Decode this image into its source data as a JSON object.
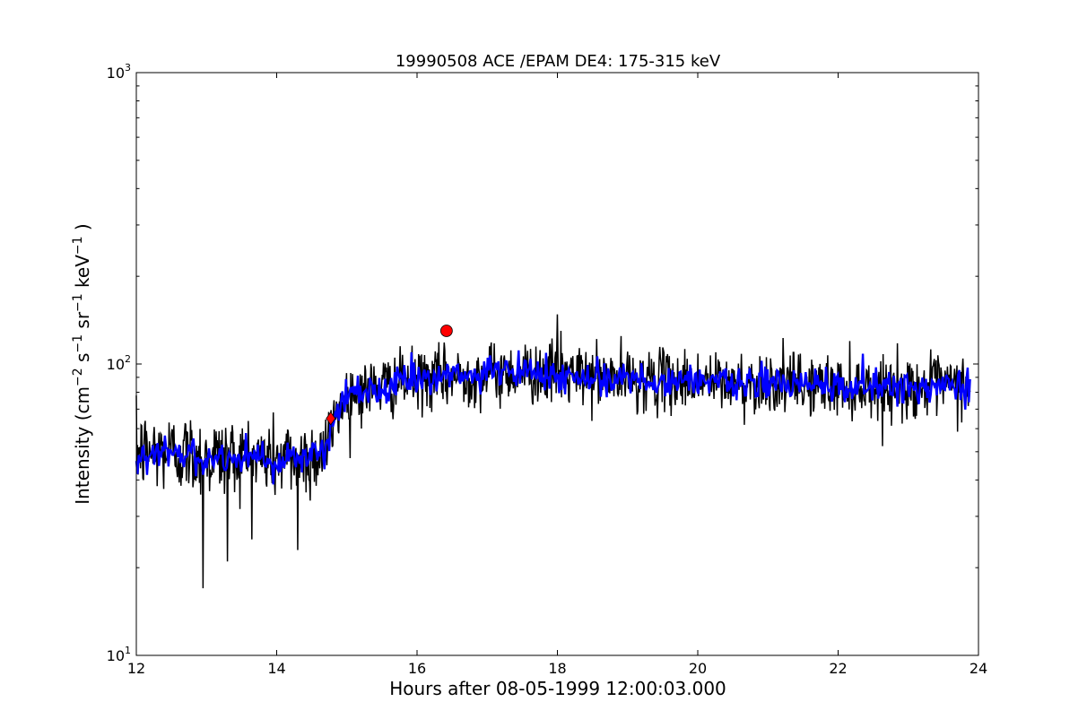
{
  "chart_data": {
    "type": "line",
    "title": "19990508 ACE /EPAM DE4: 175-315 keV",
    "xlabel": "Hours after 08-05-1999 12:00:03.000",
    "ylabel": {
      "prefix": "Intensity (cm",
      "sup1": "−2",
      "mid1": " s",
      "sup2": "−1",
      "mid2": " sr",
      "sup3": "−1",
      "mid3": " keV",
      "sup4": "−1",
      "suffix": " )"
    },
    "xlim": [
      12,
      24
    ],
    "ylim": [
      10,
      1000
    ],
    "yscale": "log",
    "grid": false,
    "xticks": [
      "12",
      "14",
      "16",
      "18",
      "20",
      "22",
      "24"
    ],
    "yticks": [
      {
        "base": "10",
        "exp": "1"
      },
      {
        "base": "10",
        "exp": "2"
      },
      {
        "base": "10",
        "exp": "3"
      }
    ],
    "series": [
      {
        "color": "#000000",
        "profile": [
          [
            12.0,
            50
          ],
          [
            12.5,
            50
          ],
          [
            13.0,
            48
          ],
          [
            13.5,
            48
          ],
          [
            14.0,
            47
          ],
          [
            14.5,
            48
          ],
          [
            14.72,
            52
          ],
          [
            14.8,
            62
          ],
          [
            14.9,
            72
          ],
          [
            15.0,
            78
          ],
          [
            15.3,
            82
          ],
          [
            15.6,
            85
          ],
          [
            16.0,
            88
          ],
          [
            16.5,
            90
          ],
          [
            17.0,
            92
          ],
          [
            17.5,
            94
          ],
          [
            18.0,
            92
          ],
          [
            18.5,
            90
          ],
          [
            19.0,
            89
          ],
          [
            19.5,
            88
          ],
          [
            20.0,
            87
          ],
          [
            20.5,
            86
          ],
          [
            21.0,
            86
          ],
          [
            21.5,
            85
          ],
          [
            22.0,
            84
          ],
          [
            22.5,
            83
          ],
          [
            23.0,
            83
          ],
          [
            23.5,
            84
          ],
          [
            23.88,
            84
          ]
        ],
        "spikes": [
          [
            12.95,
            17
          ],
          [
            13.3,
            21
          ],
          [
            14.3,
            23
          ],
          [
            18.0,
            148
          ],
          [
            18.05,
            130
          ]
        ]
      },
      {
        "color": "#0000ff",
        "profile": [
          [
            12.0,
            49
          ],
          [
            12.5,
            49
          ],
          [
            13.0,
            48
          ],
          [
            13.5,
            48
          ],
          [
            14.0,
            47
          ],
          [
            14.5,
            48
          ],
          [
            14.72,
            52
          ],
          [
            14.8,
            62
          ],
          [
            14.9,
            72
          ],
          [
            15.0,
            78
          ],
          [
            15.3,
            82
          ],
          [
            15.6,
            85
          ],
          [
            16.0,
            88
          ],
          [
            16.5,
            90
          ],
          [
            17.0,
            92
          ],
          [
            17.5,
            94
          ],
          [
            18.0,
            92
          ],
          [
            18.5,
            90
          ],
          [
            19.0,
            89
          ],
          [
            19.5,
            88
          ],
          [
            20.0,
            87
          ],
          [
            20.5,
            86
          ],
          [
            21.0,
            86
          ],
          [
            21.5,
            85
          ],
          [
            22.0,
            84
          ],
          [
            22.5,
            83
          ],
          [
            23.0,
            83
          ],
          [
            23.5,
            84
          ],
          [
            23.88,
            84
          ]
        ]
      }
    ],
    "markers": [
      {
        "x": 14.77,
        "y": 65,
        "shape": "diamond",
        "color": "#ff0000"
      },
      {
        "x": 16.42,
        "y": 130,
        "shape": "circle",
        "color": "#ff0000"
      }
    ]
  }
}
